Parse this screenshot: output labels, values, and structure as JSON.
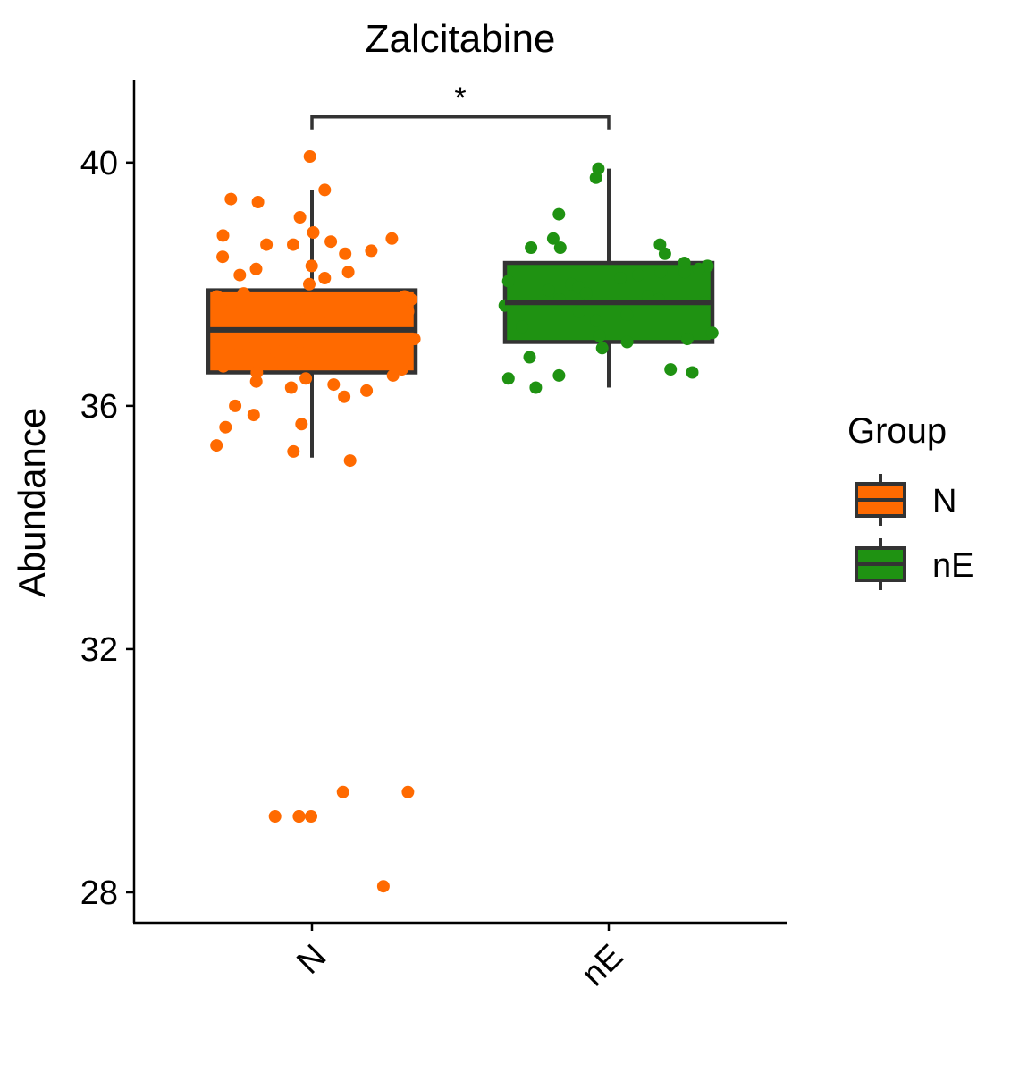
{
  "chart_data": {
    "type": "boxplot",
    "title": "Zalcitabine",
    "xlabel": "",
    "ylabel": "Abundance",
    "categories": [
      "N",
      "nE"
    ],
    "ylim": [
      27.5,
      41.35
    ],
    "yticks": [
      28,
      32,
      36,
      40
    ],
    "ytick_labels": [
      "28",
      "32",
      "36",
      "40"
    ],
    "grid": false,
    "colors": {
      "N": "#ff6a00",
      "nE": "#1f9212",
      "box_line": "#333333",
      "axis": "#000000"
    },
    "boxes": [
      {
        "group": "N",
        "whisker_low": 35.15,
        "q1": 36.55,
        "median": 37.25,
        "q3": 37.9,
        "whisker_high": 39.55
      },
      {
        "group": "nE",
        "whisker_low": 36.3,
        "q1": 37.05,
        "median": 37.7,
        "q3": 38.35,
        "whisker_high": 39.9
      }
    ],
    "points": [
      {
        "group": "N",
        "values": [
          40.1,
          39.55,
          39.4,
          39.35,
          39.1,
          38.85,
          38.8,
          38.75,
          38.7,
          38.65,
          38.65,
          38.55,
          38.5,
          38.45,
          38.3,
          38.25,
          38.2,
          38.15,
          38.1,
          38.0,
          37.85,
          37.8,
          37.8,
          37.75,
          37.7,
          37.6,
          37.55,
          37.5,
          37.45,
          37.35,
          37.25,
          37.2,
          37.15,
          37.1,
          37.05,
          37.0,
          36.95,
          36.9,
          36.85,
          36.8,
          36.75,
          36.7,
          36.65,
          36.6,
          36.55,
          36.5,
          36.45,
          36.4,
          36.35,
          36.3,
          36.25,
          36.15,
          36.0,
          35.85,
          35.7,
          35.65,
          35.35,
          35.25,
          35.1,
          29.65,
          29.65,
          29.25,
          29.25,
          29.25,
          29.25,
          28.1
        ]
      },
      {
        "group": "nE",
        "values": [
          39.9,
          39.75,
          39.15,
          38.75,
          38.65,
          38.6,
          38.6,
          38.5,
          38.35,
          38.3,
          38.25,
          38.2,
          38.2,
          38.15,
          38.1,
          38.05,
          38.0,
          37.95,
          37.9,
          37.85,
          37.8,
          37.75,
          37.75,
          37.7,
          37.65,
          37.55,
          37.5,
          37.4,
          37.3,
          37.2,
          37.15,
          37.1,
          37.05,
          36.95,
          36.8,
          36.6,
          36.55,
          36.5,
          36.45,
          36.3
        ]
      }
    ],
    "comparison": {
      "from": "N",
      "to": "nE",
      "label": "*",
      "y": 40.75
    },
    "legend": {
      "title": "Group",
      "position": "right",
      "entries": [
        {
          "label": "N",
          "color": "#ff6a00"
        },
        {
          "label": "nE",
          "color": "#1f9212"
        }
      ]
    }
  }
}
